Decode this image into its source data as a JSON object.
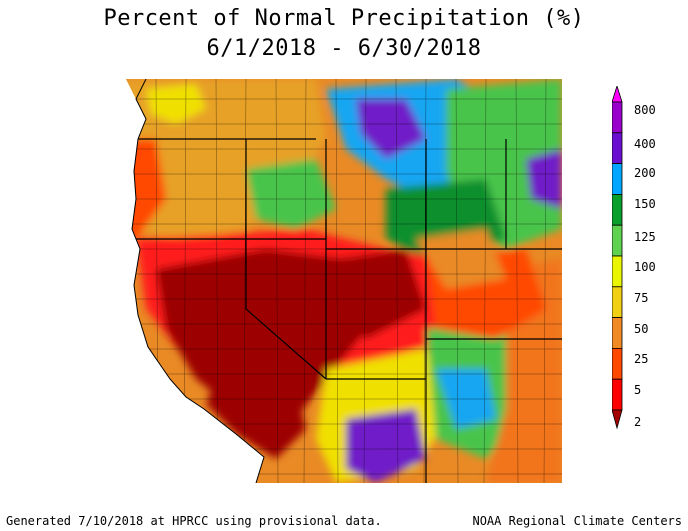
{
  "title": {
    "line1": "Percent of Normal Precipitation (%)",
    "line2": "6/1/2018 - 6/30/2018"
  },
  "footer": {
    "left": "Generated 7/10/2018 at HPRCC using provisional data.",
    "right": "NOAA Regional Climate Centers"
  },
  "legend": {
    "labels": [
      "800",
      "400",
      "200",
      "150",
      "125",
      "100",
      "75",
      "50",
      "25",
      "5",
      "2"
    ],
    "colors": [
      "#ff00ff",
      "#9900cc",
      "#6a0fd0",
      "#00a6ff",
      "#0b9f2c",
      "#5fd24f",
      "#eaf600",
      "#f1cf12",
      "#f08a24",
      "#ff4a00",
      "#ff0000",
      "#a40000"
    ]
  },
  "map": {
    "region": "Western United States",
    "colors": {
      "very_dry": "#9c0000",
      "dry": "#ff1f1f",
      "below": "#f2741e",
      "near": "#e7a125",
      "normal": "#f0e000",
      "above": "#49c44c",
      "wet": "#0b8f2e",
      "very_wet": "#13a6f2",
      "extreme": "#6f1ac8",
      "max": "#c000ff"
    }
  }
}
